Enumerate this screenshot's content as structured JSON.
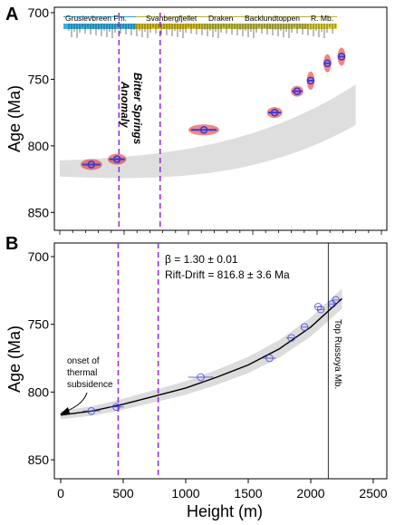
{
  "panel_a": {
    "letter": "A"
  },
  "panel_b": {
    "letter": "B"
  },
  "stratigraphy": [
    "Grusievbreen Fm.",
    "Svanbergfjellet",
    "Draken",
    "Backlundtoppen",
    "R. Mb."
  ],
  "annotations": {
    "bitter_springs_1": "Bitter Springs",
    "bitter_springs_2": "Anomaly",
    "beta": "β = 1.30 ± 0.01",
    "rift_drift": "Rift-Drift = 816.8 ± 3.6 Ma",
    "onset_1": "onset of",
    "onset_2": "thermal",
    "onset_3": "subsidence",
    "top_russoya": "Top Russoya Mb."
  },
  "colors": {
    "data_marker": "#3a3adc",
    "error_bar": "#3a3adc",
    "dashed_line": "#9b30e0",
    "envelope": "#d8d8d8",
    "posterior_cloud": "#e8231c",
    "fit_curve": "#000000"
  },
  "chart_data": [
    {
      "type": "scatter",
      "panel": "A",
      "xlim": [
        0,
        2500
      ],
      "ylim": [
        700,
        860
      ],
      "y_inverted": true,
      "xlabel": "",
      "ylabel": "Age (Ma)",
      "yticks": [
        700,
        750,
        800,
        850
      ],
      "points": [
        {
          "x": 245,
          "y": 814,
          "xerr": 70
        },
        {
          "x": 445,
          "y": 810,
          "xerr": 60
        },
        {
          "x": 1120,
          "y": 788,
          "xerr": 100
        },
        {
          "x": 1670,
          "y": 775,
          "xerr": 50
        },
        {
          "x": 1845,
          "y": 759,
          "xerr": 40
        },
        {
          "x": 1950,
          "y": 751,
          "xerr": 25
        },
        {
          "x": 2080,
          "y": 738,
          "xerr": 25
        },
        {
          "x": 2190,
          "y": 733,
          "xerr": 25
        }
      ],
      "dashed_lines_x": [
        460,
        780
      ]
    },
    {
      "type": "line",
      "panel": "B",
      "xlim": [
        0,
        2500
      ],
      "ylim": [
        700,
        860
      ],
      "y_inverted": true,
      "xlabel": "Height (m)",
      "ylabel": "Age (Ma)",
      "xticks": [
        0,
        500,
        1000,
        1500,
        2000,
        2500
      ],
      "yticks": [
        700,
        750,
        800,
        850
      ],
      "points": [
        {
          "x": 245,
          "y": 814,
          "xerr": 70
        },
        {
          "x": 445,
          "y": 811,
          "xerr": 60
        },
        {
          "x": 1120,
          "y": 789,
          "xerr": 100
        },
        {
          "x": 1670,
          "y": 775,
          "xerr": 50
        },
        {
          "x": 1845,
          "y": 760,
          "xerr": 40
        },
        {
          "x": 1950,
          "y": 752,
          "xerr": 25
        },
        {
          "x": 2060,
          "y": 737,
          "xerr": 25
        },
        {
          "x": 2080,
          "y": 739,
          "xerr": 25
        },
        {
          "x": 2170,
          "y": 735,
          "xerr": 25
        },
        {
          "x": 2200,
          "y": 732,
          "xerr": 25
        }
      ],
      "fit_curve": {
        "x": [
          0,
          250,
          500,
          750,
          1000,
          1250,
          1500,
          1750,
          2000,
          2250
        ],
        "y": [
          817,
          814,
          809,
          803,
          797,
          789,
          780,
          768,
          752,
          731
        ]
      },
      "dashed_lines_x": [
        460,
        780
      ],
      "vertical_line_x": 2140
    }
  ]
}
